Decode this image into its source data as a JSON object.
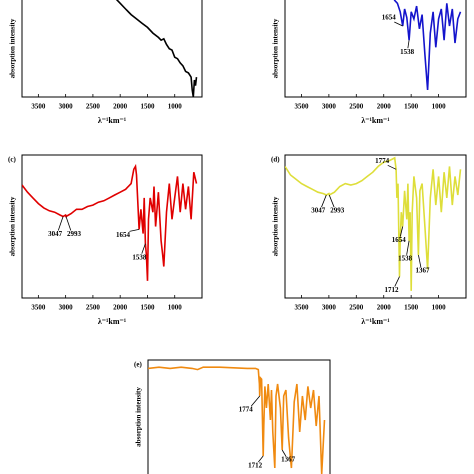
{
  "chart_data": [
    {
      "type": "line",
      "ylabel": "absorption intensity",
      "xlabel": "λ⁻¹km⁻¹",
      "color": "#000000",
      "xlim": [
        3800,
        500
      ],
      "ylim": [
        0,
        100
      ],
      "xticks": [
        3500,
        3000,
        2500,
        2000,
        1500,
        1000
      ],
      "x": [
        2300,
        2100,
        2000,
        1900,
        1800,
        1700,
        1600,
        1500,
        1400,
        1300,
        1250,
        1200,
        1150,
        1100,
        1050,
        1000,
        950,
        900,
        850,
        800,
        750,
        700,
        680,
        660,
        640,
        620,
        600
      ],
      "values": [
        78,
        70,
        66,
        62,
        58,
        55,
        52,
        49,
        45,
        42,
        40,
        41,
        37,
        34,
        33,
        28,
        27,
        24,
        22,
        18,
        17,
        14,
        5,
        0,
        12,
        8,
        14
      ],
      "annotations": []
    },
    {
      "type": "line",
      "ylabel": "absorption intensity",
      "xlabel": "λ⁻¹km⁻¹",
      "color": "#1414cc",
      "xlim": [
        3800,
        500
      ],
      "ylim": [
        0,
        100
      ],
      "xticks": [
        3500,
        3000,
        2500,
        2000,
        1500,
        1000
      ],
      "x": [
        1850,
        1800,
        1750,
        1700,
        1654,
        1620,
        1580,
        1538,
        1500,
        1450,
        1400,
        1350,
        1300,
        1250,
        1200,
        1150,
        1100,
        1050,
        1000,
        950,
        900,
        850,
        800,
        750,
        700,
        650,
        600
      ],
      "values": [
        72,
        68,
        66,
        60,
        50,
        62,
        56,
        40,
        60,
        55,
        64,
        48,
        58,
        30,
        5,
        45,
        60,
        35,
        55,
        62,
        40,
        66,
        50,
        62,
        38,
        55,
        60
      ],
      "annotations": [
        1654,
        1538
      ]
    },
    {
      "type": "line",
      "label": "(c)",
      "ylabel": "absorption intensity",
      "xlabel": "λ⁻¹km⁻¹",
      "color": "#e00000",
      "xlim": [
        3800,
        500
      ],
      "ylim": [
        0,
        100
      ],
      "xticks": [
        3500,
        3000,
        2500,
        2000,
        1500,
        1000
      ],
      "x": [
        3800,
        3700,
        3600,
        3500,
        3400,
        3300,
        3200,
        3100,
        3047,
        3000,
        2993,
        2900,
        2800,
        2700,
        2600,
        2500,
        2400,
        2300,
        2200,
        2100,
        2000,
        1900,
        1800,
        1750,
        1720,
        1700,
        1680,
        1654,
        1620,
        1580,
        1560,
        1538,
        1520,
        1500,
        1480,
        1450,
        1400,
        1380,
        1350,
        1300,
        1250,
        1220,
        1200,
        1150,
        1100,
        1050,
        1000,
        950,
        900,
        850,
        800,
        750,
        700,
        650,
        600
      ],
      "values": [
        79,
        74,
        70,
        66,
        63,
        61,
        60,
        58,
        57,
        58,
        57,
        59,
        62,
        62,
        64,
        65,
        67,
        68,
        70,
        72,
        74,
        76,
        80,
        90,
        92,
        86,
        70,
        48,
        62,
        45,
        70,
        38,
        30,
        12,
        55,
        70,
        60,
        78,
        50,
        74,
        40,
        30,
        22,
        60,
        80,
        55,
        70,
        85,
        60,
        80,
        62,
        78,
        55,
        88,
        80
      ],
      "annotations": [
        3047,
        2993,
        1654,
        1538
      ]
    },
    {
      "type": "line",
      "label": "(d)",
      "ylabel": "absorption intensity",
      "xlabel": "λ⁻¹km⁻¹",
      "color": "#dede3a",
      "xlim": [
        3800,
        500
      ],
      "ylim": [
        0,
        100
      ],
      "xticks": [
        3500,
        3000,
        2500,
        2000,
        1500,
        1000
      ],
      "x": [
        3800,
        3700,
        3600,
        3500,
        3400,
        3300,
        3200,
        3100,
        3047,
        3000,
        2993,
        2900,
        2800,
        2700,
        2600,
        2500,
        2400,
        2300,
        2200,
        2100,
        2000,
        1900,
        1800,
        1774,
        1760,
        1740,
        1712,
        1700,
        1680,
        1654,
        1620,
        1580,
        1560,
        1538,
        1520,
        1500,
        1480,
        1450,
        1400,
        1367,
        1340,
        1300,
        1250,
        1200,
        1150,
        1100,
        1050,
        1000,
        950,
        900,
        850,
        800,
        750,
        700,
        650,
        600
      ],
      "values": [
        92,
        86,
        83,
        80,
        78,
        76,
        74,
        73,
        72,
        73,
        72,
        74,
        78,
        80,
        79,
        80,
        82,
        85,
        88,
        92,
        95,
        96,
        98,
        90,
        70,
        80,
        15,
        40,
        60,
        50,
        75,
        55,
        80,
        40,
        60,
        5,
        60,
        85,
        70,
        30,
        75,
        80,
        50,
        20,
        70,
        90,
        65,
        85,
        60,
        88,
        70,
        92,
        65,
        85,
        72,
        90
      ],
      "annotations": [
        3047,
        2993,
        1774,
        1654,
        1538,
        1712,
        1367
      ]
    },
    {
      "type": "line",
      "label": "(e)",
      "ylabel": "absorption intensity",
      "color": "#f08a10",
      "xlim": [
        3800,
        500
      ],
      "ylim": [
        0,
        100
      ],
      "x": [
        3800,
        3600,
        3400,
        3200,
        3000,
        2900,
        2800,
        2500,
        2000,
        1850,
        1800,
        1780,
        1774,
        1760,
        1740,
        1712,
        1700,
        1680,
        1654,
        1620,
        1580,
        1560,
        1538,
        1500,
        1480,
        1450,
        1400,
        1367,
        1340,
        1300,
        1250,
        1200,
        1150,
        1100,
        1050,
        1000,
        950,
        900,
        850,
        800,
        750,
        700,
        650,
        600
      ],
      "values": [
        93,
        94,
        93,
        94,
        93,
        92,
        94,
        94,
        93,
        93,
        92,
        80,
        70,
        85,
        84,
        20,
        45,
        78,
        60,
        80,
        50,
        75,
        40,
        10,
        70,
        80,
        60,
        25,
        70,
        75,
        35,
        10,
        65,
        80,
        40,
        70,
        50,
        78,
        60,
        75,
        45,
        70,
        5,
        50
      ],
      "annotations": [
        1774,
        1712,
        1367
      ]
    }
  ]
}
